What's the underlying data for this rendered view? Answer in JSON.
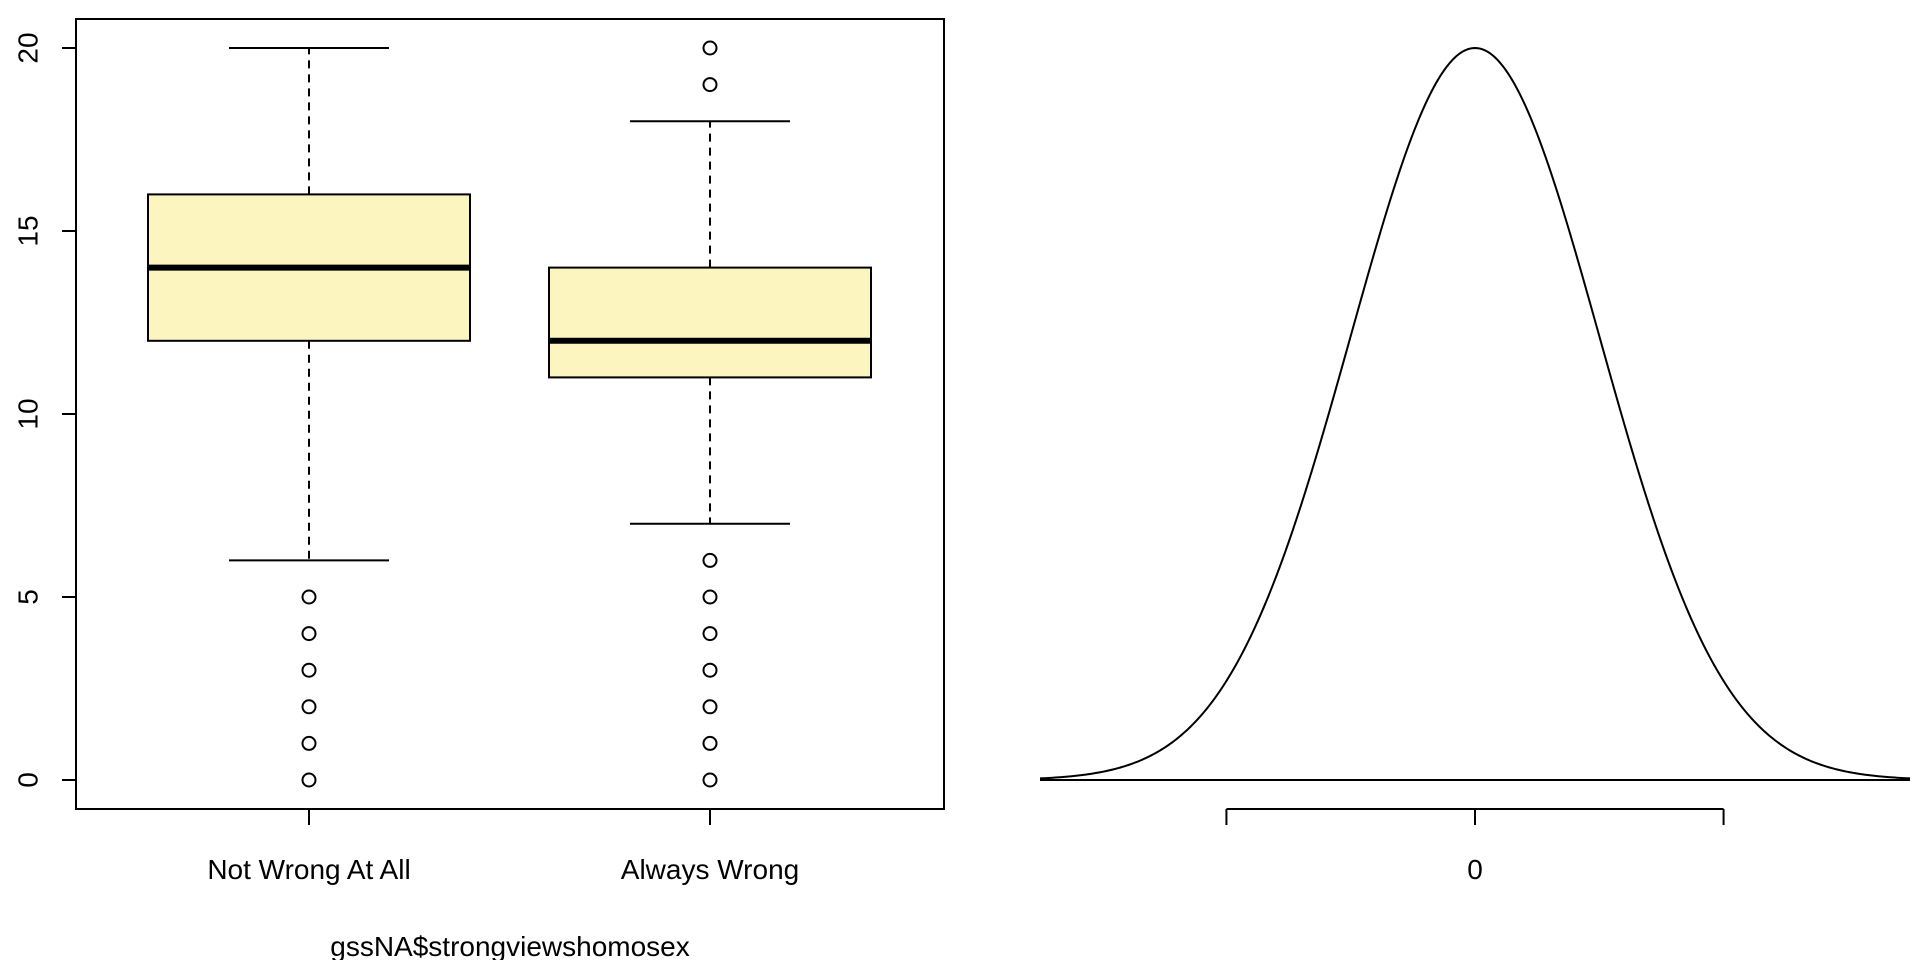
{
  "chart_data": [
    {
      "type": "box",
      "xlabel": "gssNA$strongviewshomosex",
      "ylabel": "",
      "ylim": [
        0,
        20
      ],
      "yticks": [
        0,
        5,
        10,
        15,
        20
      ],
      "box_fill": "#FDF5BF",
      "categories": [
        "Not Wrong At All",
        "Always Wrong"
      ],
      "boxes": [
        {
          "name": "Not Wrong At All",
          "whisker_low": 6,
          "q1": 12,
          "median": 14,
          "q3": 16,
          "whisker_high": 20,
          "outliers": [
            0,
            1,
            2,
            3,
            4,
            5
          ]
        },
        {
          "name": "Always Wrong",
          "whisker_low": 7,
          "q1": 11,
          "median": 12,
          "q3": 14,
          "whisker_high": 18,
          "outliers": [
            0,
            1,
            2,
            3,
            4,
            5,
            6,
            19,
            20
          ]
        }
      ]
    },
    {
      "type": "line",
      "curve": "normal density",
      "xlim": [
        -3.5,
        3.5
      ],
      "xticks": [
        -2,
        0,
        2
      ],
      "xtick_labels": [
        "",
        "0",
        ""
      ],
      "mean": 0,
      "sd": 1
    }
  ]
}
